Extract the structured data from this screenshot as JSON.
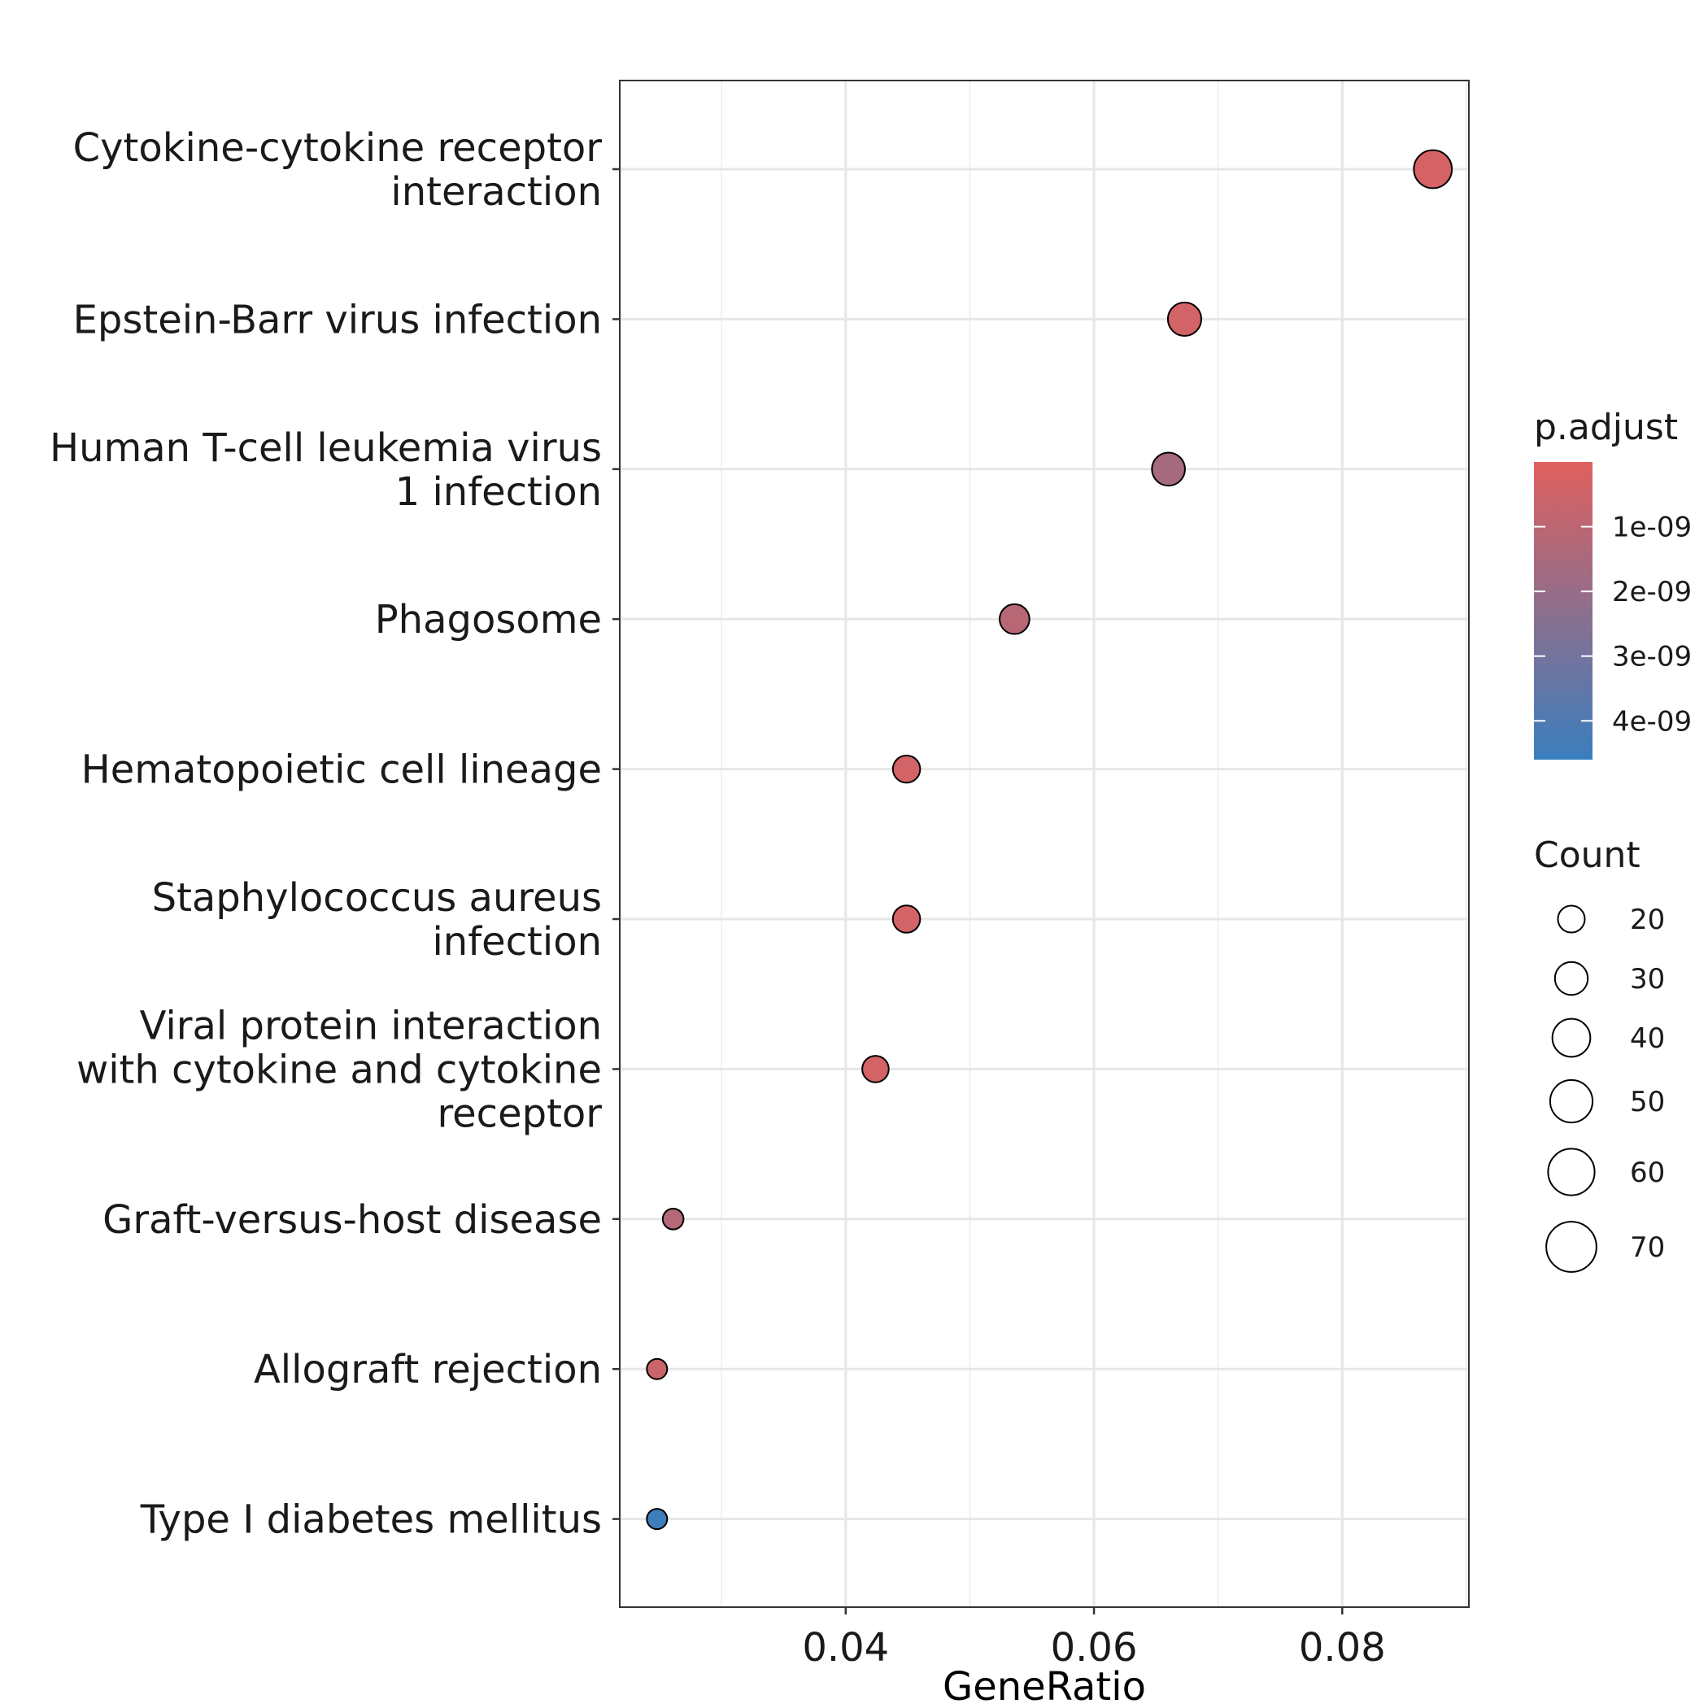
{
  "chart_data": {
    "type": "scatter",
    "xlabel": "GeneRatio",
    "xlim": [
      0.0218,
      0.0902
    ],
    "x_ticks": [
      {
        "value": 0.04,
        "label": "0.04"
      },
      {
        "value": 0.06,
        "label": "0.06"
      },
      {
        "value": 0.08,
        "label": "0.08"
      }
    ],
    "x_minor": [
      0.03,
      0.05,
      0.07,
      0.09
    ],
    "grid": true,
    "legend_position": "right",
    "colors": {
      "low": "#E0605E",
      "high": "#3A7EBE"
    },
    "categories": [
      {
        "lines": [
          "Cytokine-cytokine receptor",
          "interaction"
        ],
        "x": 0.0873,
        "count": 70,
        "p_adjust": 3e-10
      },
      {
        "lines": [
          "Epstein-Barr virus infection"
        ],
        "x": 0.0673,
        "count": 54,
        "p_adjust": 4e-10
      },
      {
        "lines": [
          "Human T-cell leukemia virus",
          "1 infection"
        ],
        "x": 0.066,
        "count": 53,
        "p_adjust": 1.6e-09
      },
      {
        "lines": [
          "Phagosome"
        ],
        "x": 0.0536,
        "count": 43,
        "p_adjust": 1.1e-09
      },
      {
        "lines": [
          "Hematopoietic cell lineage"
        ],
        "x": 0.0449,
        "count": 36,
        "p_adjust": 4e-10
      },
      {
        "lines": [
          "Staphylococcus aureus",
          "infection"
        ],
        "x": 0.0449,
        "count": 36,
        "p_adjust": 4e-10
      },
      {
        "lines": [
          "Viral protein interaction",
          "with cytokine and cytokine",
          "receptor"
        ],
        "x": 0.0424,
        "count": 34,
        "p_adjust": 4e-10
      },
      {
        "lines": [
          "Graft-versus-host disease"
        ],
        "x": 0.0261,
        "count": 21,
        "p_adjust": 1.2e-09
      },
      {
        "lines": [
          "Allograft rejection"
        ],
        "x": 0.0248,
        "count": 20,
        "p_adjust": 6e-10
      },
      {
        "lines": [
          "Type I diabetes mellitus"
        ],
        "x": 0.0248,
        "count": 20,
        "p_adjust": 4.5e-09
      }
    ],
    "color_legend": {
      "title": "p.adjust",
      "range": [
        0,
        4.6e-09
      ],
      "ticks": [
        {
          "value": 1e-09,
          "label": "1e-09"
        },
        {
          "value": 2e-09,
          "label": "2e-09"
        },
        {
          "value": 3e-09,
          "label": "3e-09"
        },
        {
          "value": 4e-09,
          "label": "4e-09"
        }
      ]
    },
    "size_legend": {
      "title": "Count",
      "entries": [
        {
          "value": 20,
          "label": "20"
        },
        {
          "value": 30,
          "label": "30"
        },
        {
          "value": 40,
          "label": "40"
        },
        {
          "value": 50,
          "label": "50"
        },
        {
          "value": 60,
          "label": "60"
        },
        {
          "value": 70,
          "label": "70"
        }
      ]
    }
  }
}
